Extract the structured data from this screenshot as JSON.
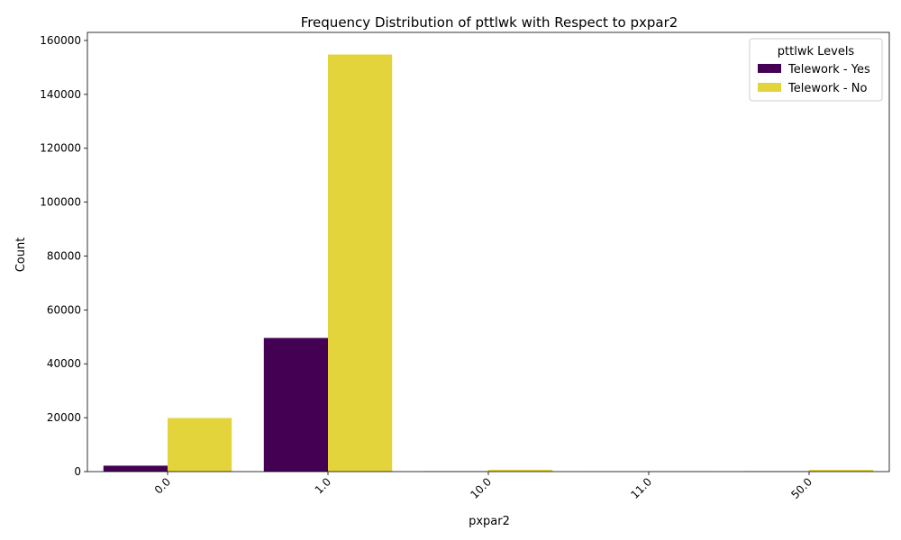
{
  "chart_data": {
    "type": "bar",
    "title": "Frequency Distribution of pttlwk with Respect to pxpar2",
    "xlabel": "pxpar2",
    "ylabel": "Count",
    "categories": [
      "0.0",
      "1.0",
      "10.0",
      "11.0",
      "50.0"
    ],
    "series": [
      {
        "name": "Telework - Yes",
        "color": "#440154",
        "values": [
          2200,
          49600,
          60,
          10,
          80
        ]
      },
      {
        "name": "Telework - No",
        "color": "#e3d43c",
        "values": [
          19900,
          154800,
          700,
          120,
          650
        ]
      }
    ],
    "ylim": [
      0,
      163000
    ],
    "yticks": [
      0,
      20000,
      40000,
      60000,
      80000,
      100000,
      120000,
      140000,
      160000
    ],
    "ytick_labels": [
      "0",
      "20000",
      "40000",
      "60000",
      "80000",
      "100000",
      "120000",
      "140000",
      "160000"
    ],
    "xtick_rotation": 45,
    "legend": {
      "title": "pttlwk Levels",
      "placement": "top-right"
    },
    "grid": false
  }
}
